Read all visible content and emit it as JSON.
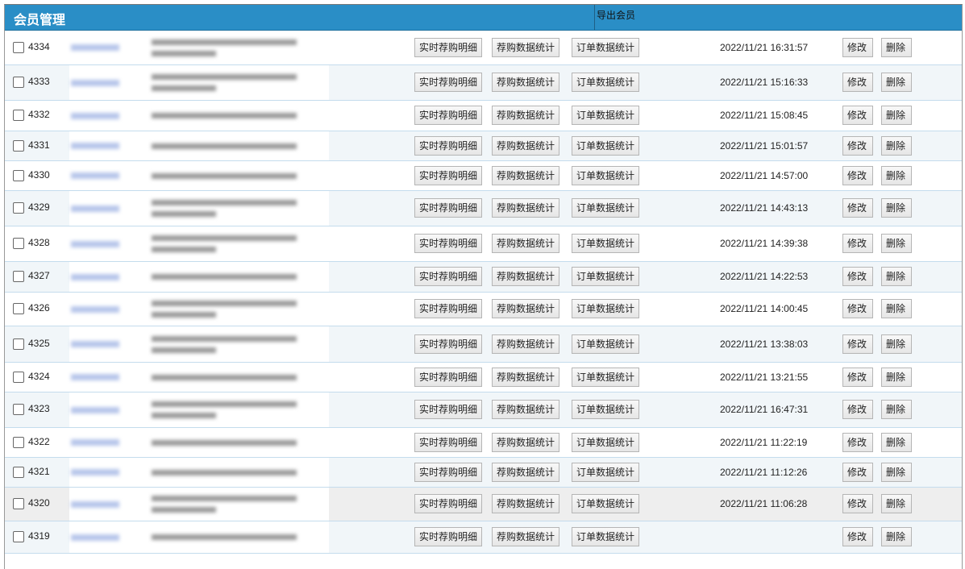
{
  "header": {
    "title": "会员管理",
    "export_label": "导出会员"
  },
  "buttons": {
    "detail": "实时荐购明细",
    "stats": "荐购数据统计",
    "orders": "订单数据统计",
    "edit": "修改",
    "delete": "删除"
  },
  "colors": {
    "header": "#2a8ec6",
    "row_alt": "#f1f6f9"
  },
  "rows": [
    {
      "id": "4334",
      "time": "2022/11/21 16:31:57",
      "lines": 2
    },
    {
      "id": "4333",
      "time": "2022/11/21 15:16:33",
      "lines": 2
    },
    {
      "id": "4332",
      "time": "2022/11/21 15:08:45",
      "lines": 1
    },
    {
      "id": "4331",
      "time": "2022/11/21 15:01:57",
      "lines": 1
    },
    {
      "id": "4330",
      "time": "2022/11/21 14:57:00",
      "lines": 1
    },
    {
      "id": "4329",
      "time": "2022/11/21 14:43:13",
      "lines": 2
    },
    {
      "id": "4328",
      "time": "2022/11/21 14:39:38",
      "lines": 2
    },
    {
      "id": "4327",
      "time": "2022/11/21 14:22:53",
      "lines": 1
    },
    {
      "id": "4326",
      "time": "2022/11/21 14:00:45",
      "lines": 2
    },
    {
      "id": "4325",
      "time": "2022/11/21 13:38:03",
      "lines": 2
    },
    {
      "id": "4324",
      "time": "2022/11/21 13:21:55",
      "lines": 1
    },
    {
      "id": "4323",
      "time": "2022/11/21 16:47:31",
      "lines": 2
    },
    {
      "id": "4322",
      "time": "2022/11/21 11:22:19",
      "lines": 1
    },
    {
      "id": "4321",
      "time": "2022/11/21 11:12:26",
      "lines": 1
    },
    {
      "id": "4320",
      "time": "2022/11/21 11:06:28",
      "lines": 2,
      "hover": true
    },
    {
      "id": "4319",
      "time": "",
      "lines": 1
    }
  ]
}
